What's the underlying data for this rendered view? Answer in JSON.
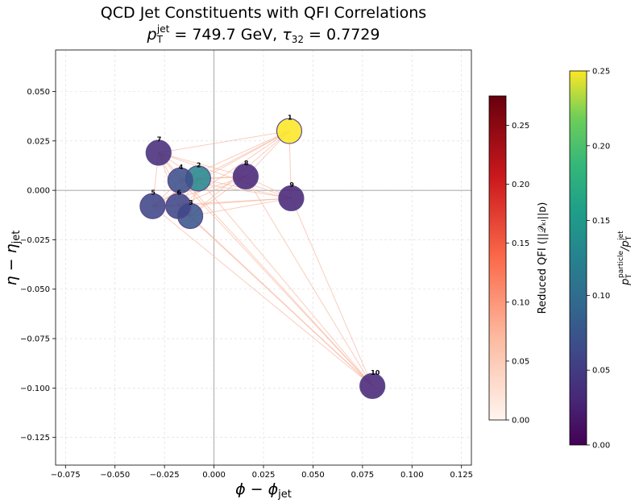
{
  "chart_data": {
    "type": "scatter",
    "title_line1": "QCD Jet Constituents with QFI Correlations",
    "title_line2": {
      "pt_symbol": "p",
      "pt_sub": "T",
      "pt_sup": "jet",
      "pt_value": " = 749.7 GeV, ",
      "tau_symbol": "τ",
      "tau_sub": "32",
      "tau_value": " = 0.7729"
    },
    "xlabel": {
      "main": "ϕ − ϕ",
      "sub": "jet"
    },
    "ylabel": {
      "main": "η − η",
      "sub": "jet"
    },
    "xlim": [
      -0.08,
      0.13
    ],
    "ylim": [
      -0.139,
      0.071
    ],
    "xticks": [
      -0.075,
      -0.05,
      -0.025,
      0.0,
      0.025,
      0.05,
      0.075,
      0.1,
      0.125
    ],
    "xtick_labels": [
      "−0.075",
      "−0.050",
      "−0.025",
      "0.000",
      "0.025",
      "0.050",
      "0.075",
      "0.100",
      "0.125"
    ],
    "yticks": [
      0.05,
      0.025,
      0.0,
      -0.025,
      -0.05,
      -0.075,
      -0.1,
      -0.125
    ],
    "ytick_labels": [
      "0.050",
      "0.025",
      "0.000",
      "−0.025",
      "−0.050",
      "−0.075",
      "−0.100",
      "−0.125"
    ],
    "grid": true,
    "points": [
      {
        "label": "1",
        "x": 0.038,
        "y": 0.03,
        "pt_frac": 0.25
      },
      {
        "label": "2",
        "x": -0.008,
        "y": 0.006,
        "pt_frac": 0.13
      },
      {
        "label": "3",
        "x": -0.012,
        "y": -0.013,
        "pt_frac": 0.075
      },
      {
        "label": "4",
        "x": -0.017,
        "y": 0.005,
        "pt_frac": 0.07
      },
      {
        "label": "5",
        "x": -0.031,
        "y": -0.008,
        "pt_frac": 0.06
      },
      {
        "label": "6",
        "x": -0.018,
        "y": -0.008,
        "pt_frac": 0.06
      },
      {
        "label": "7",
        "x": -0.028,
        "y": 0.019,
        "pt_frac": 0.035
      },
      {
        "label": "8",
        "x": 0.016,
        "y": 0.007,
        "pt_frac": 0.03
      },
      {
        "label": "9",
        "x": 0.039,
        "y": -0.004,
        "pt_frac": 0.03
      },
      {
        "label": "10",
        "x": 0.08,
        "y": -0.099,
        "pt_frac": 0.03
      }
    ],
    "connections": [
      [
        0,
        1
      ],
      [
        0,
        2
      ],
      [
        0,
        3
      ],
      [
        0,
        4
      ],
      [
        0,
        5
      ],
      [
        0,
        6
      ],
      [
        0,
        7
      ],
      [
        0,
        8
      ],
      [
        1,
        2
      ],
      [
        1,
        3
      ],
      [
        1,
        4
      ],
      [
        1,
        5
      ],
      [
        1,
        6
      ],
      [
        1,
        7
      ],
      [
        1,
        8
      ],
      [
        1,
        9
      ],
      [
        2,
        3
      ],
      [
        2,
        4
      ],
      [
        2,
        5
      ],
      [
        2,
        6
      ],
      [
        2,
        7
      ],
      [
        2,
        8
      ],
      [
        2,
        9
      ],
      [
        3,
        4
      ],
      [
        3,
        5
      ],
      [
        3,
        6
      ],
      [
        3,
        7
      ],
      [
        3,
        8
      ],
      [
        3,
        9
      ],
      [
        4,
        5
      ],
      [
        4,
        6
      ],
      [
        4,
        7
      ],
      [
        4,
        8
      ],
      [
        4,
        9
      ],
      [
        5,
        6
      ],
      [
        5,
        7
      ],
      [
        5,
        8
      ],
      [
        5,
        9
      ],
      [
        6,
        7
      ],
      [
        6,
        8
      ],
      [
        6,
        9
      ],
      [
        7,
        8
      ],
      [
        7,
        9
      ],
      [
        8,
        9
      ]
    ],
    "colorbar_qfi": {
      "label": "Reduced QFI (||𝒬ₖₗ||ᴅ)",
      "range": [
        0,
        0.275
      ],
      "ticks": [
        0.0,
        0.05,
        0.1,
        0.15,
        0.2,
        0.25
      ],
      "tick_labels": [
        "0.00",
        "0.05",
        "0.10",
        "0.15",
        "0.20",
        "0.25"
      ]
    },
    "colorbar_pt": {
      "label_main": "p",
      "label_sub": "T",
      "label_sup": "particle",
      "label_div": "/p",
      "label_div_sub": "T",
      "label_div_sup": "jet",
      "range": [
        0,
        0.25
      ],
      "ticks": [
        0.0,
        0.05,
        0.1,
        0.15,
        0.2,
        0.25
      ],
      "tick_labels": [
        "0.00",
        "0.05",
        "0.10",
        "0.15",
        "0.20",
        "0.25"
      ]
    }
  }
}
